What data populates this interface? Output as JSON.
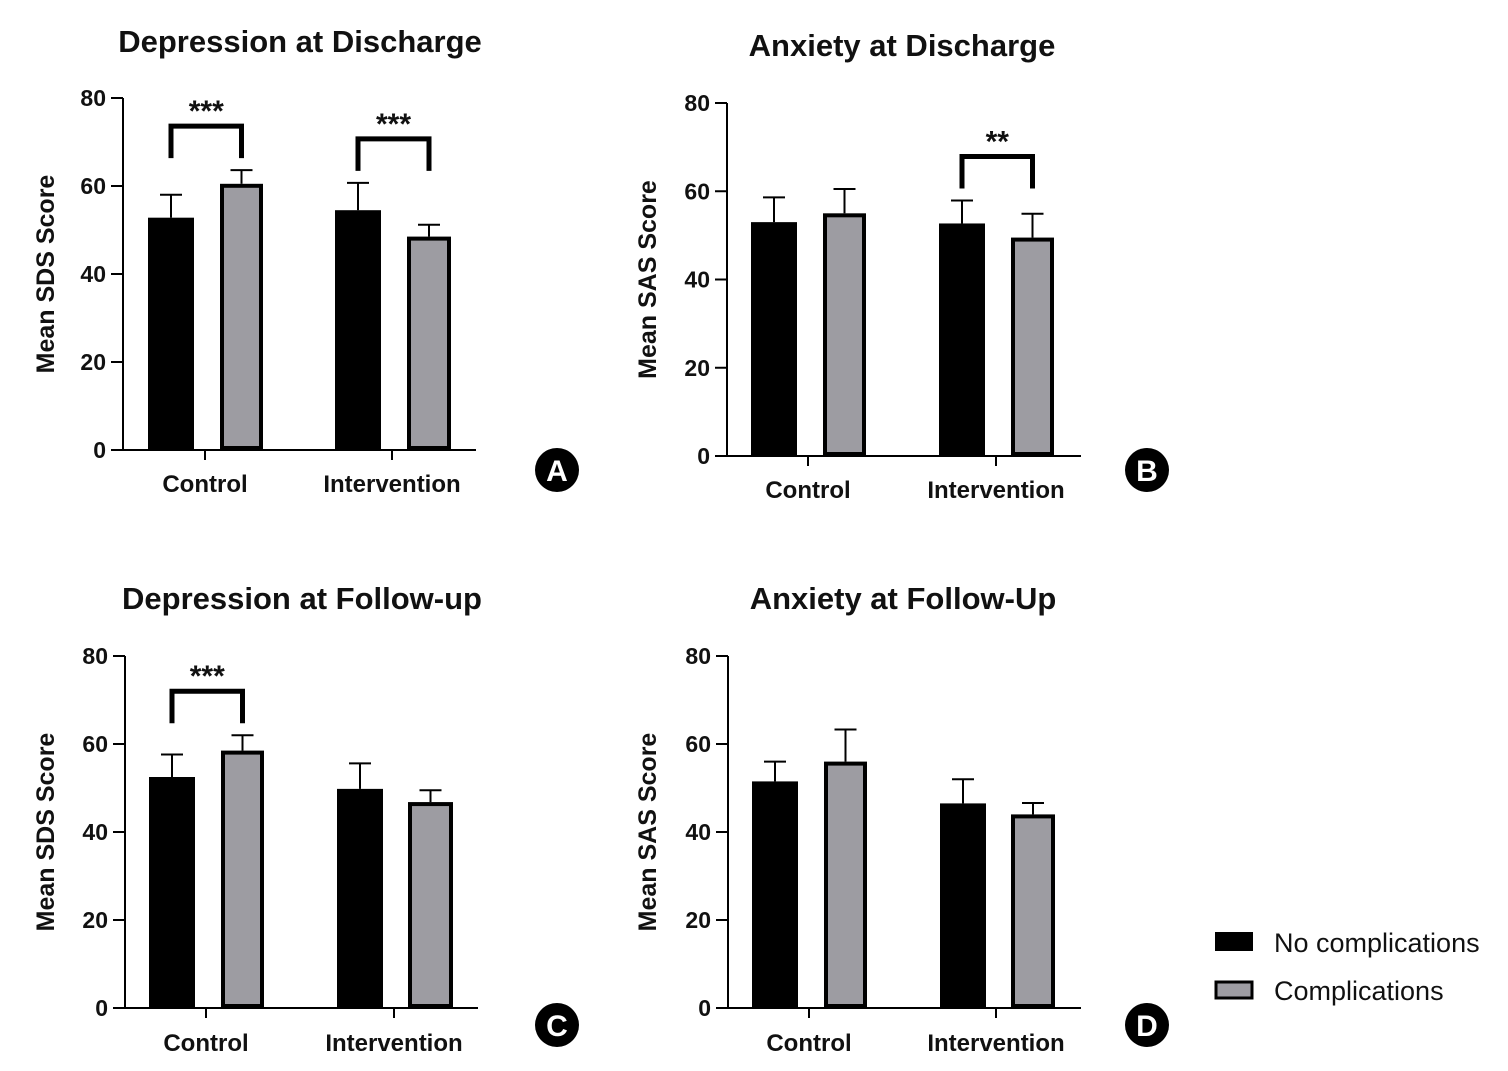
{
  "legend": {
    "items": [
      {
        "label": "No complications",
        "color": "#000000"
      },
      {
        "label": "Complications",
        "color": "#9d9ca2"
      }
    ]
  },
  "chart_data": [
    {
      "type": "bar",
      "panel": "A",
      "title": "Depression at Discharge",
      "ylabel": "Mean SDS Score",
      "ylim": [
        0,
        80
      ],
      "yticks": [
        0,
        20,
        40,
        60,
        80
      ],
      "categories": [
        "Control",
        "Intervention"
      ],
      "series": [
        {
          "name": "No complications",
          "values": [
            52.8,
            54.5
          ],
          "errors": [
            5.2,
            6.2
          ]
        },
        {
          "name": "Complications",
          "values": [
            60.5,
            48.5
          ],
          "errors": [
            3.1,
            2.7
          ]
        }
      ],
      "significance": [
        {
          "category": "Control",
          "label": "***"
        },
        {
          "category": "Intervention",
          "label": "***"
        }
      ]
    },
    {
      "type": "bar",
      "panel": "B",
      "title": "Anxiety at Discharge",
      "ylabel": "Mean SAS Score",
      "ylim": [
        0,
        80
      ],
      "yticks": [
        0,
        20,
        40,
        60,
        80
      ],
      "categories": [
        "Control",
        "Intervention"
      ],
      "series": [
        {
          "name": "No complications",
          "values": [
            53.0,
            52.7
          ],
          "errors": [
            5.6,
            5.2
          ]
        },
        {
          "name": "Complications",
          "values": [
            55.0,
            49.5
          ],
          "errors": [
            5.5,
            5.4
          ]
        }
      ],
      "significance": [
        {
          "category": "Intervention",
          "label": "**"
        }
      ]
    },
    {
      "type": "bar",
      "panel": "C",
      "title": "Depression at Follow-up",
      "ylabel": "Mean SDS Score",
      "ylim": [
        0,
        80
      ],
      "yticks": [
        0,
        20,
        40,
        60,
        80
      ],
      "categories": [
        "Control",
        "Intervention"
      ],
      "series": [
        {
          "name": "No complications",
          "values": [
            52.5,
            49.8
          ],
          "errors": [
            5.1,
            5.8
          ]
        },
        {
          "name": "Complications",
          "values": [
            58.5,
            46.8
          ],
          "errors": [
            3.5,
            2.7
          ]
        }
      ],
      "significance": [
        {
          "category": "Control",
          "label": "***"
        }
      ]
    },
    {
      "type": "bar",
      "panel": "D",
      "title": "Anxiety at Follow-Up",
      "ylabel": "Mean SAS Score",
      "ylim": [
        0,
        80
      ],
      "yticks": [
        0,
        20,
        40,
        60,
        80
      ],
      "categories": [
        "Control",
        "Intervention"
      ],
      "series": [
        {
          "name": "No complications",
          "values": [
            51.5,
            46.5
          ],
          "errors": [
            4.5,
            5.5
          ]
        },
        {
          "name": "Complications",
          "values": [
            56.0,
            44.0
          ],
          "errors": [
            7.3,
            2.6
          ]
        }
      ],
      "significance": []
    }
  ]
}
